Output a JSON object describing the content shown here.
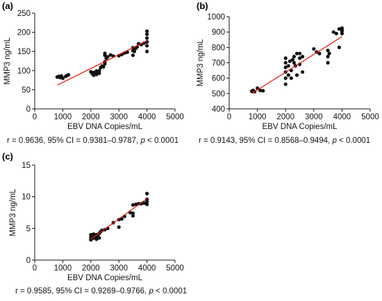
{
  "chart_data": [
    {
      "type": "scatter",
      "panel_label": "(a)",
      "xlabel": "EBV DNA Copies/mL",
      "ylabel": "MMP3 ng/mL",
      "xlim": [
        0,
        5000
      ],
      "ylim": [
        0,
        250
      ],
      "xticks": [
        0,
        1000,
        2000,
        3000,
        4000,
        5000
      ],
      "yticks": [
        0,
        50,
        100,
        150,
        200,
        250
      ],
      "grid": false,
      "point_color": "#111111",
      "line_color": "#e02020",
      "fit_line": {
        "x": [
          800,
          4000
        ],
        "y": [
          62,
          178
        ]
      },
      "caption": {
        "prefix": "r = 0.9636, 95% CI = 0.9381–0.9787, ",
        "p": "p",
        "suffix": " < 0.0001"
      },
      "points": {
        "x": [
          800,
          850,
          900,
          950,
          1000,
          1100,
          1150,
          1200,
          2000,
          2050,
          2100,
          2100,
          2150,
          2200,
          2200,
          2250,
          2300,
          2300,
          2350,
          2400,
          2450,
          2500,
          2500,
          2500,
          2500,
          2550,
          2600,
          2700,
          2800,
          3000,
          3100,
          3200,
          3300,
          3500,
          3500,
          3500,
          3550,
          3600,
          3650,
          3700,
          3800,
          3900,
          4000,
          4000,
          4000,
          4000,
          4000,
          4000
        ],
        "y": [
          83,
          85,
          82,
          86,
          80,
          85,
          87,
          89,
          97,
          92,
          95,
          88,
          91,
          90,
          99,
          94,
          100,
          93,
          108,
          112,
          110,
          118,
          123,
          140,
          145,
          132,
          136,
          141,
          138,
          139,
          142,
          146,
          148,
          140,
          152,
          160,
          150,
          158,
          162,
          170,
          168,
          172,
          150,
          165,
          175,
          185,
          195,
          203
        ]
      }
    },
    {
      "type": "scatter",
      "panel_label": "(b)",
      "xlabel": "EBV DNA Copies/mL",
      "ylabel": "MMP3 ng/mL",
      "xlim": [
        0,
        5000
      ],
      "ylim": [
        400,
        1000
      ],
      "xticks": [
        0,
        1000,
        2000,
        3000,
        4000,
        5000
      ],
      "yticks": [
        400,
        500,
        600,
        700,
        800,
        900,
        1000
      ],
      "grid": false,
      "point_color": "#111111",
      "line_color": "#e02020",
      "fit_line": {
        "x": [
          800,
          4000
        ],
        "y": [
          500,
          870
        ]
      },
      "caption": {
        "prefix": "r = 0.9143, 95% CI = 0.8568–0.9494, ",
        "p": "p",
        "suffix": " < 0.0001"
      },
      "points": {
        "x": [
          800,
          850,
          900,
          1000,
          1100,
          1200,
          2000,
          2000,
          2000,
          2000,
          2000,
          2000,
          2100,
          2100,
          2150,
          2200,
          2200,
          2250,
          2300,
          2300,
          2350,
          2400,
          2400,
          2500,
          2500,
          2500,
          2600,
          2600,
          3000,
          3100,
          3200,
          3500,
          3500,
          3500,
          3550,
          3700,
          3800,
          3900,
          3900,
          4000,
          4000,
          4000,
          4000
        ],
        "y": [
          515,
          520,
          512,
          535,
          520,
          518,
          560,
          600,
          640,
          670,
          700,
          730,
          620,
          680,
          710,
          600,
          650,
          720,
          700,
          740,
          680,
          620,
          760,
          690,
          730,
          760,
          640,
          740,
          790,
          770,
          760,
          700,
          740,
          780,
          760,
          900,
          890,
          920,
          800,
          890,
          905,
          915,
          925
        ]
      }
    },
    {
      "type": "scatter",
      "panel_label": "(c)",
      "xlabel": "EBV DNA Copies/mL",
      "ylabel": "MMP3 ng/mL",
      "xlim": [
        0,
        5000
      ],
      "ylim": [
        0,
        15
      ],
      "xticks": [
        0,
        1000,
        2000,
        3000,
        4000,
        5000
      ],
      "yticks": [
        0,
        5,
        10,
        15
      ],
      "grid": false,
      "point_color": "#111111",
      "line_color": "#e02020",
      "fit_line": {
        "x": [
          2000,
          4000
        ],
        "y": [
          3.3,
          9.7
        ]
      },
      "caption": {
        "prefix": "r = 0.9585, 95% CI = 0.9269–0.9766, ",
        "p": "p",
        "suffix": " < 0.0001"
      },
      "points": {
        "x": [
          2000,
          2000,
          2000,
          2050,
          2050,
          2100,
          2100,
          2150,
          2200,
          2200,
          2200,
          2250,
          2300,
          2300,
          2350,
          2400,
          2500,
          2600,
          2800,
          3000,
          3000,
          3100,
          3200,
          3400,
          3500,
          3500,
          3500,
          3600,
          3700,
          3800,
          3900,
          4000,
          4000,
          4000,
          4000
        ],
        "y": [
          3.2,
          3.6,
          4.0,
          3.4,
          3.8,
          3.5,
          4.1,
          3.7,
          3.3,
          3.6,
          4.0,
          3.9,
          3.5,
          4.2,
          4.5,
          4.7,
          4.8,
          5.0,
          5.9,
          5.2,
          6.4,
          6.5,
          6.9,
          7.5,
          7.0,
          7.4,
          8.7,
          8.8,
          8.9,
          8.9,
          9.0,
          8.8,
          9.2,
          9.6,
          10.5
        ]
      }
    }
  ]
}
